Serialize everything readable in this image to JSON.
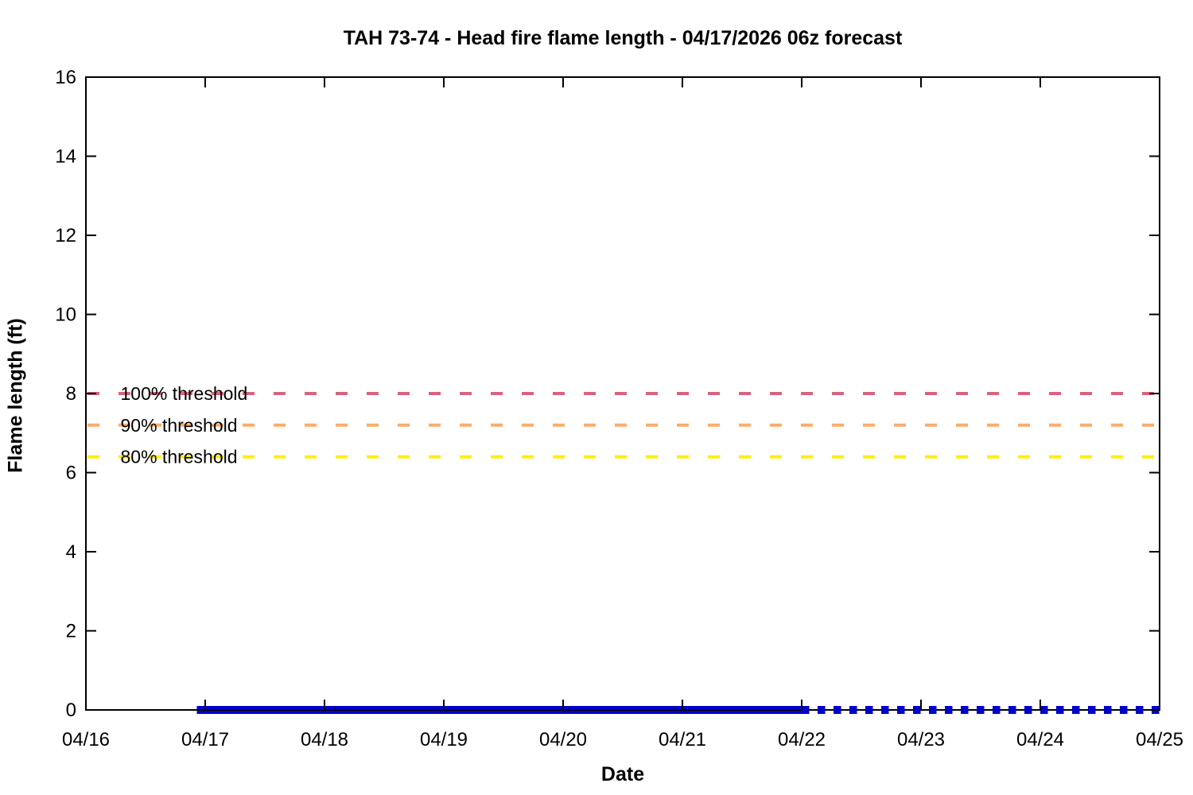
{
  "page": {
    "title": "TAH 73-74 - Head fire flame length - 04/17/2026 06z forecast"
  },
  "chart_data": {
    "type": "line",
    "title": "TAH 73-74 - Head fire flame length - 04/17/2026 06z forecast",
    "xlabel": "Date",
    "ylabel": "Flame length (ft)",
    "x_tick_labels": [
      "04/16",
      "04/17",
      "04/18",
      "04/19",
      "04/20",
      "04/21",
      "04/22",
      "04/23",
      "04/24",
      "04/25"
    ],
    "xlim_days": [
      0,
      9
    ],
    "yticks": [
      0,
      2,
      4,
      6,
      8,
      10,
      12,
      14,
      16
    ],
    "ylim": [
      0,
      16
    ],
    "grid": false,
    "legend": "none",
    "thresholds": [
      {
        "key": "100",
        "label": "100% threshold",
        "value": 8,
        "color": "#d5657e",
        "style": "dashed"
      },
      {
        "key": "90",
        "label": "90% threshold",
        "value": 7.2,
        "color": "#f8ae6e",
        "style": "dashed"
      },
      {
        "key": "80",
        "label": "80% threshold",
        "value": 6.4,
        "color": "#fff000",
        "style": "dashed"
      }
    ],
    "threshold_label_x_day": 0.29,
    "series": [
      {
        "name": "head-fire-flame-length-forecast",
        "style": "solid",
        "color": "#0000cc",
        "x_days": [
          0.93,
          6.0
        ],
        "values": [
          0,
          0
        ]
      },
      {
        "name": "head-fire-flame-length-extended-forecast",
        "style": "dotted",
        "color": "#0000cc",
        "x_days": [
          6.0,
          9.0
        ],
        "values": [
          0,
          0
        ]
      }
    ]
  }
}
